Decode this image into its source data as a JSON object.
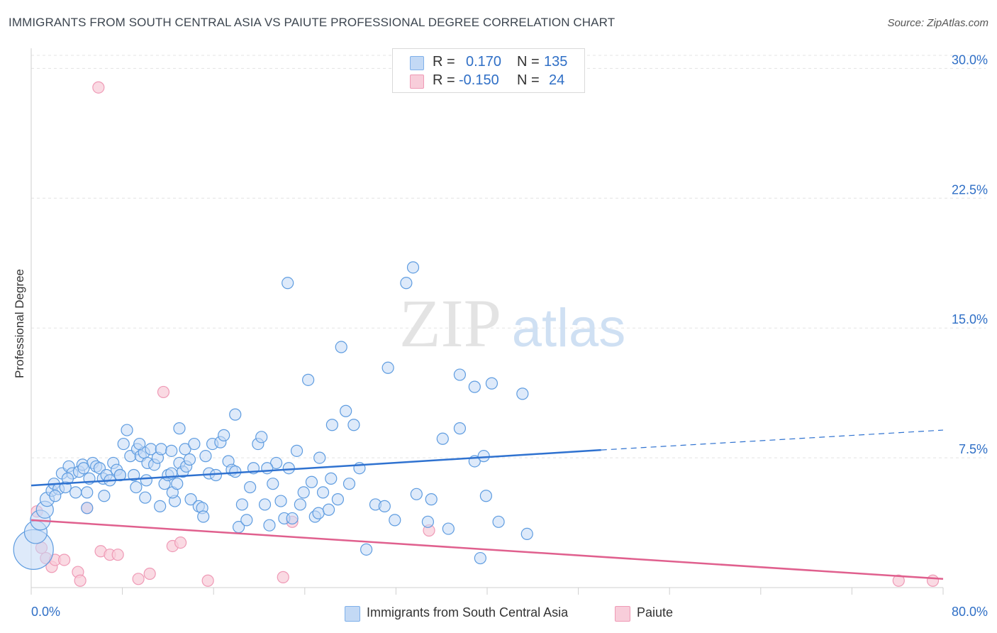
{
  "header": {
    "title": "IMMIGRANTS FROM SOUTH CENTRAL ASIA VS PAIUTE PROFESSIONAL DEGREE CORRELATION CHART",
    "source": "Source: ZipAtlas.com"
  },
  "stats_box": {
    "rows": [
      {
        "r_label": "R =",
        "r_value": "0.170",
        "n_label": "N =",
        "n_value": "135",
        "color": "#7fb0ea",
        "fill": "#c3d9f5"
      },
      {
        "r_label": "R =",
        "r_value": "-0.150",
        "n_label": "N =",
        "n_value": "24",
        "color": "#ef9ab6",
        "fill": "#f8cdda"
      }
    ]
  },
  "watermark": {
    "zip": "ZIP",
    "atlas": "atlas"
  },
  "colors": {
    "blue": "#4a90d9",
    "blue_line": "#2f72d0",
    "pink": "#ef8fb0",
    "pink_line": "#e0608e",
    "tick_text": "#2f6fc6"
  },
  "chart_data": {
    "type": "scatter",
    "title": "IMMIGRANTS FROM SOUTH CENTRAL ASIA VS PAIUTE PROFESSIONAL DEGREE CORRELATION CHART",
    "xlabel": "",
    "ylabel": "Professional Degree",
    "xlim": [
      0,
      80
    ],
    "ylim": [
      0,
      31
    ],
    "x_tick_labels": [
      "0.0%",
      "80.0%"
    ],
    "y_ticks": [
      7.5,
      15.0,
      22.5,
      30.0
    ],
    "y_tick_labels": [
      "7.5%",
      "15.0%",
      "22.5%",
      "30.0%"
    ],
    "grid": true,
    "legend_position": "bottom",
    "series": [
      {
        "name": "Immigrants from South Central Asia",
        "color": "#4a90d9",
        "trend": {
          "x0": 0,
          "y0": 5.9,
          "x1": 50,
          "y1": 7.95,
          "dashed_to_x": 80,
          "dashed_to_y": 9.1
        },
        "points": [
          [
            0.2,
            2.2,
            28
          ],
          [
            0.4,
            3.2,
            16
          ],
          [
            0.8,
            3.9,
            14
          ],
          [
            1.2,
            4.5,
            12
          ],
          [
            1.4,
            5.1,
            10
          ],
          [
            1.8,
            5.6,
            8
          ],
          [
            2.0,
            6.0,
            8
          ],
          [
            2.4,
            5.7,
            8
          ],
          [
            2.7,
            6.6,
            8
          ],
          [
            3.0,
            5.8,
            8
          ],
          [
            3.3,
            7.0,
            8
          ],
          [
            3.6,
            6.6,
            8
          ],
          [
            3.9,
            5.5,
            8
          ],
          [
            4.2,
            6.7,
            8
          ],
          [
            4.5,
            7.1,
            8
          ],
          [
            4.9,
            5.5,
            8
          ],
          [
            5.1,
            6.3,
            8
          ],
          [
            5.4,
            7.2,
            8
          ],
          [
            5.7,
            7.0,
            8
          ],
          [
            6.0,
            6.9,
            8
          ],
          [
            6.3,
            6.3,
            8
          ],
          [
            6.6,
            6.5,
            8
          ],
          [
            6.9,
            6.2,
            8
          ],
          [
            7.2,
            7.2,
            8
          ],
          [
            7.5,
            6.8,
            8
          ],
          [
            7.8,
            6.5,
            8
          ],
          [
            8.1,
            8.3,
            8
          ],
          [
            8.4,
            9.1,
            8
          ],
          [
            8.7,
            7.6,
            8
          ],
          [
            9.0,
            6.5,
            8
          ],
          [
            9.3,
            8.0,
            8
          ],
          [
            9.6,
            7.6,
            8
          ],
          [
            9.9,
            7.8,
            8
          ],
          [
            10.2,
            7.2,
            8
          ],
          [
            10.5,
            8.0,
            8
          ],
          [
            10.8,
            7.1,
            8
          ],
          [
            11.1,
            7.5,
            8
          ],
          [
            11.4,
            8.0,
            8
          ],
          [
            11.7,
            6.0,
            8
          ],
          [
            12.0,
            6.5,
            8
          ],
          [
            12.3,
            7.9,
            8
          ],
          [
            12.6,
            5.0,
            8
          ],
          [
            13.0,
            7.2,
            8
          ],
          [
            13.3,
            6.7,
            8
          ],
          [
            13.6,
            7.0,
            8
          ],
          [
            14.0,
            5.1,
            8
          ],
          [
            4.9,
            4.6,
            8
          ],
          [
            6.4,
            5.3,
            8
          ],
          [
            9.2,
            5.8,
            8
          ],
          [
            10.0,
            5.2,
            8
          ],
          [
            11.3,
            4.7,
            8
          ],
          [
            12.4,
            5.5,
            8
          ],
          [
            12.8,
            6.0,
            8
          ],
          [
            13.0,
            9.2,
            8
          ],
          [
            13.5,
            8.0,
            8
          ],
          [
            13.9,
            7.4,
            8
          ],
          [
            14.3,
            8.3,
            8
          ],
          [
            14.7,
            4.7,
            8
          ],
          [
            15.0,
            4.6,
            8
          ],
          [
            15.3,
            7.6,
            8
          ],
          [
            15.6,
            6.6,
            8
          ],
          [
            15.9,
            8.3,
            8
          ],
          [
            15.1,
            4.1,
            8
          ],
          [
            16.2,
            6.5,
            8
          ],
          [
            16.6,
            8.4,
            8
          ],
          [
            16.9,
            8.8,
            8
          ],
          [
            17.3,
            7.3,
            8
          ],
          [
            17.6,
            6.8,
            8
          ],
          [
            17.9,
            10.0,
            8
          ],
          [
            18.2,
            3.5,
            8
          ],
          [
            18.5,
            4.8,
            8
          ],
          [
            18.9,
            3.9,
            8
          ],
          [
            19.2,
            5.8,
            8
          ],
          [
            19.5,
            6.9,
            8
          ],
          [
            19.9,
            8.3,
            8
          ],
          [
            20.2,
            8.7,
            8
          ],
          [
            20.5,
            4.8,
            8
          ],
          [
            20.9,
            3.6,
            8
          ],
          [
            21.2,
            6.0,
            8
          ],
          [
            21.5,
            7.2,
            8
          ],
          [
            21.9,
            5.0,
            8
          ],
          [
            22.2,
            4.0,
            8
          ],
          [
            22.6,
            6.9,
            8
          ],
          [
            22.9,
            4.0,
            8
          ],
          [
            23.3,
            7.9,
            8
          ],
          [
            23.6,
            4.8,
            8
          ],
          [
            23.9,
            5.5,
            8
          ],
          [
            24.3,
            12.0,
            8
          ],
          [
            24.6,
            6.1,
            8
          ],
          [
            24.9,
            4.1,
            8
          ],
          [
            25.3,
            7.5,
            8
          ],
          [
            25.6,
            5.5,
            8
          ],
          [
            25.2,
            4.3,
            8
          ],
          [
            26.1,
            4.5,
            8
          ],
          [
            26.4,
            9.4,
            8
          ],
          [
            26.9,
            5.1,
            8
          ],
          [
            27.2,
            13.9,
            8
          ],
          [
            27.6,
            10.2,
            8
          ],
          [
            27.9,
            6.0,
            8
          ],
          [
            28.3,
            9.4,
            8
          ],
          [
            28.8,
            6.9,
            8
          ],
          [
            29.4,
            2.2,
            8
          ],
          [
            30.2,
            4.8,
            8
          ],
          [
            31.0,
            4.7,
            8
          ],
          [
            31.3,
            12.7,
            8
          ],
          [
            31.9,
            3.9,
            8
          ],
          [
            32.9,
            17.6,
            8
          ],
          [
            33.5,
            18.5,
            8
          ],
          [
            33.8,
            5.4,
            8
          ],
          [
            34.8,
            3.8,
            8
          ],
          [
            35.1,
            5.1,
            8
          ],
          [
            36.1,
            8.6,
            8
          ],
          [
            36.6,
            3.4,
            8
          ],
          [
            37.6,
            12.3,
            8
          ],
          [
            37.6,
            9.2,
            8
          ],
          [
            38.9,
            7.3,
            8
          ],
          [
            38.9,
            11.6,
            8
          ],
          [
            39.4,
            1.7,
            8
          ],
          [
            39.7,
            7.6,
            8
          ],
          [
            39.9,
            5.3,
            8
          ],
          [
            40.4,
            11.8,
            8
          ],
          [
            41.0,
            3.8,
            8
          ],
          [
            43.1,
            11.2,
            8
          ],
          [
            43.5,
            3.1,
            8
          ],
          [
            22.5,
            17.6,
            8
          ],
          [
            9.5,
            8.3,
            8
          ],
          [
            3.2,
            6.3,
            8
          ],
          [
            2.1,
            5.3,
            8
          ],
          [
            4.6,
            6.9,
            8
          ],
          [
            7.8,
            6.5,
            8
          ],
          [
            10.1,
            6.2,
            8
          ],
          [
            12.3,
            6.6,
            8
          ],
          [
            17.9,
            6.7,
            8
          ],
          [
            20.7,
            6.9,
            8
          ],
          [
            26.3,
            6.3,
            8
          ]
        ]
      },
      {
        "name": "Paiute",
        "color": "#ef8fb0",
        "trend": {
          "x0": 0,
          "y0": 3.9,
          "x1": 80,
          "y1": 0.5
        },
        "points": [
          [
            0.5,
            4.4,
            8
          ],
          [
            0.9,
            2.3,
            8
          ],
          [
            1.3,
            1.7,
            8
          ],
          [
            1.8,
            1.2,
            8
          ],
          [
            2.1,
            1.6,
            8
          ],
          [
            2.9,
            1.6,
            8
          ],
          [
            4.1,
            0.9,
            8
          ],
          [
            4.3,
            0.4,
            8
          ],
          [
            4.9,
            4.6,
            8
          ],
          [
            5.9,
            28.9,
            8
          ],
          [
            6.1,
            2.1,
            8
          ],
          [
            6.9,
            1.9,
            8
          ],
          [
            7.6,
            1.9,
            8
          ],
          [
            9.4,
            0.5,
            8
          ],
          [
            10.4,
            0.8,
            8
          ],
          [
            11.6,
            11.3,
            8
          ],
          [
            12.4,
            2.4,
            8
          ],
          [
            13.1,
            2.6,
            8
          ],
          [
            15.5,
            0.4,
            8
          ],
          [
            22.1,
            0.6,
            8
          ],
          [
            22.9,
            3.8,
            8
          ],
          [
            34.9,
            3.3,
            8
          ],
          [
            76.1,
            0.4,
            8
          ],
          [
            79.1,
            0.4,
            8
          ]
        ]
      }
    ]
  }
}
